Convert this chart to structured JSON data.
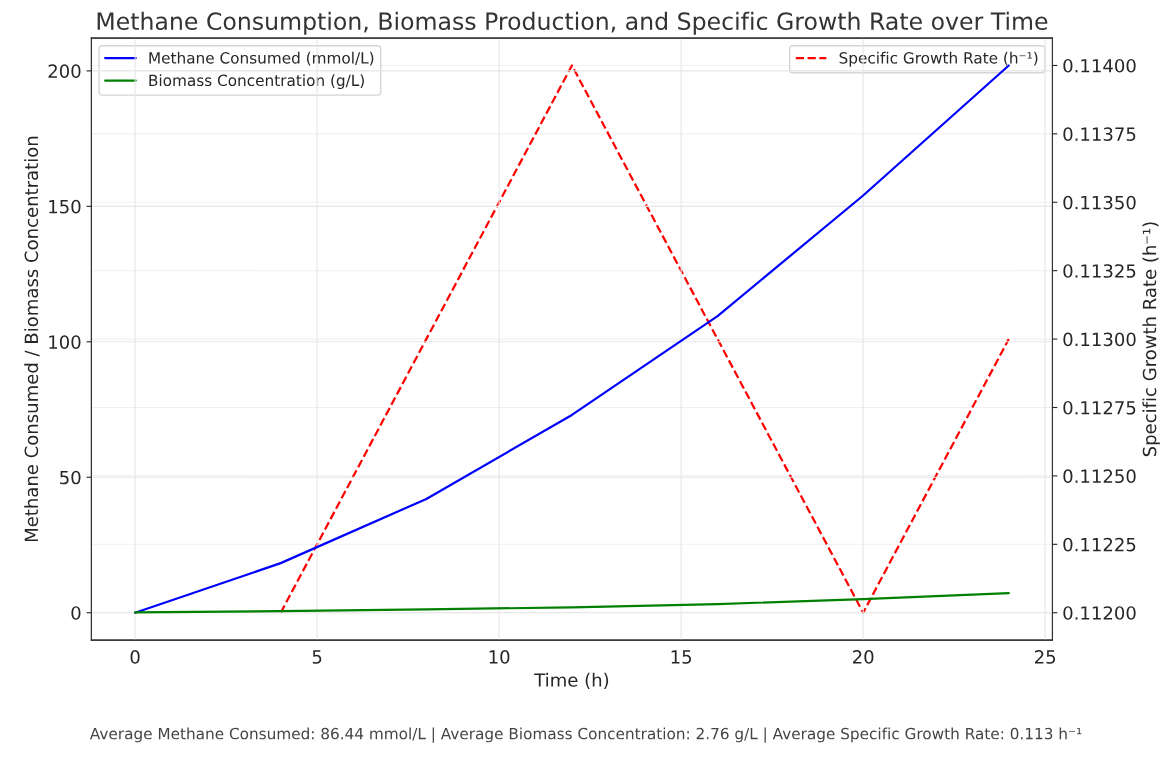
{
  "chart_data": {
    "type": "line",
    "title": "Methane Consumption, Biomass Production, and Specific Growth Rate over Time",
    "xlabel": "Time (h)",
    "ylabel": "Methane Consumed / Biomass Concentration",
    "y2label": "Specific Growth Rate (h⁻¹)",
    "x": [
      0,
      4,
      8,
      12,
      16,
      20,
      24
    ],
    "series": [
      {
        "name": "Methane Consumed (mmol/L)",
        "color": "#0000ff",
        "values": [
          0,
          18.3,
          42,
          73,
          109.5,
          154,
          202
        ]
      },
      {
        "name": "Biomass Concentration (g/L)",
        "color": "#008000",
        "values": [
          0.1,
          0.6,
          1.2,
          2,
          3.2,
          5,
          7.2
        ]
      },
      {
        "name": "Specific Growth Rate (h⁻¹)",
        "color": "#ff0000",
        "axis": "y2",
        "line_style": "dashed",
        "x": [
          4,
          12,
          20,
          24
        ],
        "values": [
          0.112,
          0.114,
          0.112,
          0.113
        ]
      }
    ],
    "xlim": [
      -1.2,
      25.2
    ],
    "xticks": [
      0,
      5,
      10,
      15,
      20,
      25
    ],
    "ylim": [
      -10.1,
      212.1
    ],
    "yticks": [
      0,
      50,
      100,
      150,
      200
    ],
    "y2lim": [
      0.1119,
      0.1141
    ],
    "y2ticks": [
      {
        "value": 0.112,
        "label": "0.11200"
      },
      {
        "value": 0.11225,
        "label": "0.11225"
      },
      {
        "value": 0.1125,
        "label": "0.11250"
      },
      {
        "value": 0.11275,
        "label": "0.11275"
      },
      {
        "value": 0.113,
        "label": "0.11300"
      },
      {
        "value": 0.11325,
        "label": "0.11325"
      },
      {
        "value": 0.1135,
        "label": "0.11350"
      },
      {
        "value": 0.11375,
        "label": "0.11375"
      },
      {
        "value": 0.114,
        "label": "0.11400"
      }
    ],
    "grid": true,
    "legend": "top",
    "annotations": [
      "Average Methane Consumed: 86.44 mmol/L | Average Biomass Concentration: 2.76 g/L | Average Specific Growth Rate: 0.113 h⁻¹"
    ]
  }
}
